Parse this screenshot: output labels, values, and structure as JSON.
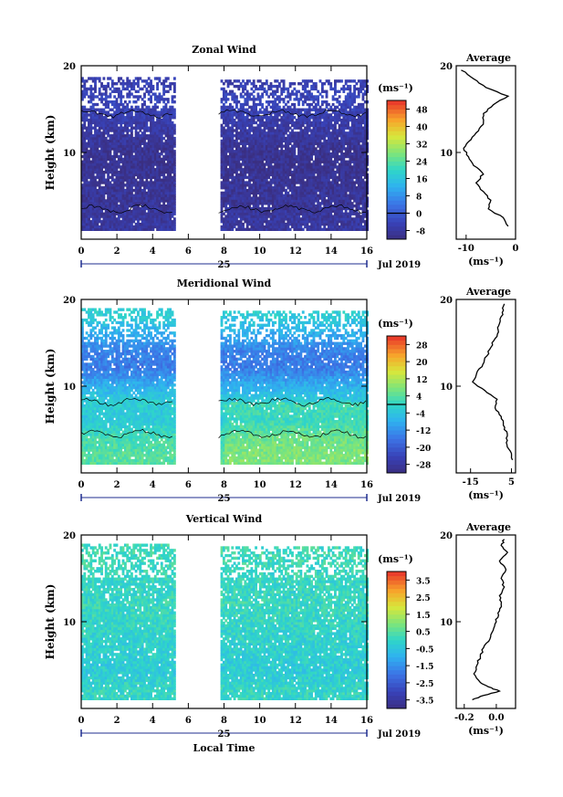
{
  "chart_data": [
    {
      "type": "heatmap",
      "title": "Zonal Wind",
      "ylabel": "Height (km)",
      "units": "(ms⁻¹)",
      "x_range": [
        0,
        16
      ],
      "y_range": [
        0,
        20
      ],
      "x_ticks": [
        "0",
        "2",
        "4",
        "6",
        "8",
        "10",
        "12",
        "14",
        "16"
      ],
      "y_ticks": [
        "10",
        "20"
      ],
      "day_label": "25",
      "month_label": "Jul 2019",
      "colorbar_labels": [
        "48",
        "40",
        "32",
        "24",
        "16",
        "8",
        "0",
        "-8"
      ],
      "colorbar_range": [
        -12,
        52
      ],
      "contour_level": 0,
      "data_gap_hours": [
        5.2,
        7.7
      ],
      "data_top_km": [
        18.5,
        18.3
      ],
      "profile_by_height": [
        {
          "h": 2,
          "v": -8
        },
        {
          "h": 4,
          "v": -9
        },
        {
          "h": 6,
          "v": -9
        },
        {
          "h": 8,
          "v": -10
        },
        {
          "h": 10,
          "v": -10
        },
        {
          "h": 12,
          "v": -8
        },
        {
          "h": 14,
          "v": -6
        },
        {
          "h": 16,
          "v": -4
        },
        {
          "h": 18,
          "v": -6
        }
      ],
      "average": {
        "title": "Average",
        "x_ticks": [
          "-10",
          "0"
        ],
        "x_range": [
          -12,
          0
        ],
        "y_ticks": [
          "10",
          "20"
        ],
        "xlabel": "(ms⁻¹)",
        "points": [
          {
            "h": 1.5,
            "v": -1.5
          },
          {
            "h": 2.5,
            "v": -2.5
          },
          {
            "h": 3.5,
            "v": -5.5
          },
          {
            "h": 4.5,
            "v": -5.0
          },
          {
            "h": 5.5,
            "v": -6.5
          },
          {
            "h": 6.5,
            "v": -8.0
          },
          {
            "h": 7.5,
            "v": -6.5
          },
          {
            "h": 8.5,
            "v": -8.5
          },
          {
            "h": 9.5,
            "v": -9.5
          },
          {
            "h": 10.5,
            "v": -10.5
          },
          {
            "h": 11.5,
            "v": -9.0
          },
          {
            "h": 12.5,
            "v": -7.5
          },
          {
            "h": 13.5,
            "v": -6.5
          },
          {
            "h": 14.5,
            "v": -6.5
          },
          {
            "h": 15.5,
            "v": -4.5
          },
          {
            "h": 16.5,
            "v": -1.5
          },
          {
            "h": 17.5,
            "v": -6.0
          },
          {
            "h": 18.5,
            "v": -8.5
          },
          {
            "h": 19.5,
            "v": -11.0
          }
        ]
      }
    },
    {
      "type": "heatmap",
      "title": "Meridional Wind",
      "ylabel": "Height (km)",
      "units": "(ms⁻¹)",
      "x_range": [
        0,
        16
      ],
      "y_range": [
        0,
        20
      ],
      "x_ticks": [
        "0",
        "2",
        "4",
        "6",
        "8",
        "10",
        "12",
        "14",
        "16"
      ],
      "y_ticks": [
        "10",
        "20"
      ],
      "day_label": "25",
      "month_label": "Jul 2019",
      "colorbar_labels": [
        "28",
        "20",
        "12",
        "4",
        "-4",
        "-12",
        "-20",
        "-28"
      ],
      "colorbar_range": [
        -32,
        32
      ],
      "contour_level": 0,
      "data_gap_hours": [
        5.2,
        7.7
      ],
      "data_top_km": [
        19.0,
        18.5
      ],
      "profile_by_height": [
        {
          "h": 2,
          "v": 4
        },
        {
          "h": 4,
          "v": 2
        },
        {
          "h": 6,
          "v": -3
        },
        {
          "h": 8,
          "v": -2
        },
        {
          "h": 10,
          "v": -8
        },
        {
          "h": 12,
          "v": -15
        },
        {
          "h": 14,
          "v": -14
        },
        {
          "h": 16,
          "v": -8
        },
        {
          "h": 18,
          "v": -2
        }
      ],
      "average": {
        "title": "Average",
        "x_ticks": [
          "-15",
          "5"
        ],
        "x_range": [
          -22,
          7
        ],
        "y_ticks": [
          "10",
          "20"
        ],
        "xlabel": "(ms⁻¹)",
        "points": [
          {
            "h": 1.5,
            "v": 5.5
          },
          {
            "h": 2.5,
            "v": 4.5
          },
          {
            "h": 3.5,
            "v": 2.5
          },
          {
            "h": 4.5,
            "v": 3.0
          },
          {
            "h": 5.5,
            "v": 1.0
          },
          {
            "h": 6.5,
            "v": 0.0
          },
          {
            "h": 7.5,
            "v": -3.0
          },
          {
            "h": 8.5,
            "v": -2.0
          },
          {
            "h": 9.5,
            "v": -8.0
          },
          {
            "h": 10.5,
            "v": -14.0
          },
          {
            "h": 11.5,
            "v": -12.0
          },
          {
            "h": 12.5,
            "v": -9.0
          },
          {
            "h": 13.5,
            "v": -7.0
          },
          {
            "h": 14.5,
            "v": -5.0
          },
          {
            "h": 15.5,
            "v": -3.0
          },
          {
            "h": 16.5,
            "v": -1.5
          },
          {
            "h": 17.5,
            "v": -0.5
          },
          {
            "h": 18.5,
            "v": 0.5
          },
          {
            "h": 19.5,
            "v": 1.5
          }
        ]
      }
    },
    {
      "type": "heatmap",
      "title": "Vertical Wind",
      "ylabel": "Height (km)",
      "xlabel": "Local Time",
      "units": "(ms⁻¹)",
      "x_range": [
        0,
        16
      ],
      "y_range": [
        0,
        20
      ],
      "x_ticks": [
        "0",
        "2",
        "4",
        "6",
        "8",
        "10",
        "12",
        "14",
        "16"
      ],
      "y_ticks": [
        "10",
        "20"
      ],
      "day_label": "25",
      "month_label": "Jul 2019",
      "colorbar_labels": [
        "3.5",
        "2.5",
        "1.5",
        "0.5",
        "-0.5",
        "-1.5",
        "-2.5",
        "-3.5"
      ],
      "colorbar_range": [
        -4,
        4
      ],
      "data_gap_hours": [
        5.2,
        7.7
      ],
      "data_top_km": [
        19.0,
        18.5
      ],
      "profile_by_height": [
        {
          "h": 2,
          "v": 0.0
        },
        {
          "h": 4,
          "v": -0.3
        },
        {
          "h": 6,
          "v": -0.2
        },
        {
          "h": 8,
          "v": -0.1
        },
        {
          "h": 10,
          "v": 0.0
        },
        {
          "h": 12,
          "v": 0.1
        },
        {
          "h": 14,
          "v": 0.0
        },
        {
          "h": 16,
          "v": 0.1
        },
        {
          "h": 18,
          "v": 0.2
        }
      ],
      "average": {
        "title": "Average",
        "x_ticks": [
          "-0.2",
          "0.0"
        ],
        "x_range": [
          -0.25,
          0.12
        ],
        "y_ticks": [
          "10",
          "20"
        ],
        "xlabel": "(ms⁻¹)",
        "points": [
          {
            "h": 1.0,
            "v": -0.15
          },
          {
            "h": 1.5,
            "v": -0.08
          },
          {
            "h": 2.0,
            "v": 0.02
          },
          {
            "h": 2.5,
            "v": -0.05
          },
          {
            "h": 3.0,
            "v": -0.1
          },
          {
            "h": 4.0,
            "v": -0.14
          },
          {
            "h": 5.0,
            "v": -0.12
          },
          {
            "h": 6.0,
            "v": -0.1
          },
          {
            "h": 7.0,
            "v": -0.08
          },
          {
            "h": 8.0,
            "v": -0.04
          },
          {
            "h": 9.0,
            "v": -0.02
          },
          {
            "h": 10.0,
            "v": 0.0
          },
          {
            "h": 11.0,
            "v": 0.01
          },
          {
            "h": 12.0,
            "v": 0.03
          },
          {
            "h": 13.0,
            "v": 0.02
          },
          {
            "h": 14.0,
            "v": 0.05
          },
          {
            "h": 15.0,
            "v": 0.03
          },
          {
            "h": 16.0,
            "v": 0.06
          },
          {
            "h": 17.0,
            "v": 0.02
          },
          {
            "h": 18.0,
            "v": 0.07
          },
          {
            "h": 18.8,
            "v": 0.03
          },
          {
            "h": 19.5,
            "v": 0.05
          }
        ]
      }
    }
  ]
}
